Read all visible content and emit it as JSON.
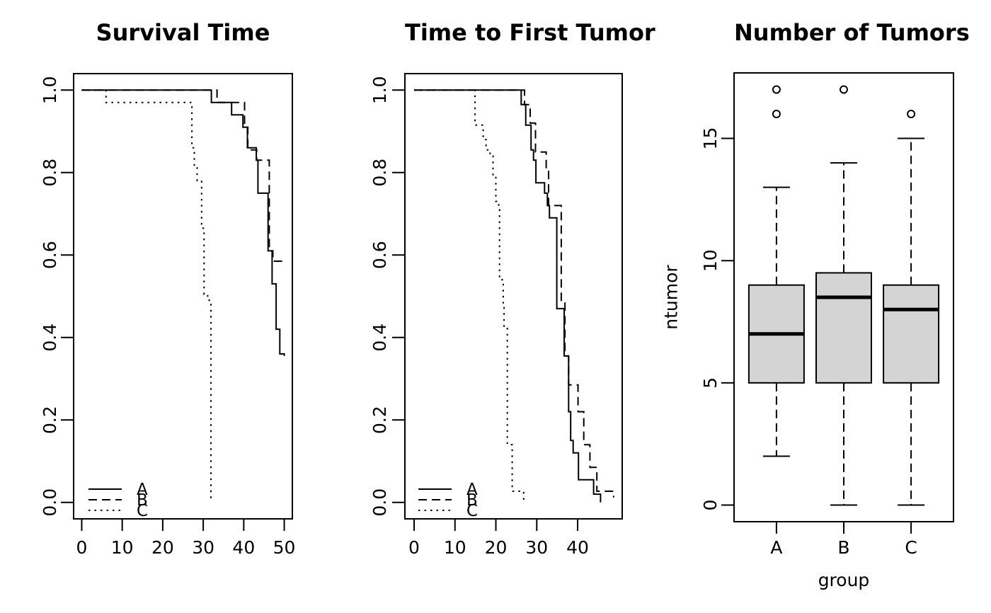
{
  "canvas": {
    "background": "#ffffff",
    "foreground": "#000000"
  },
  "chart_data": [
    {
      "type": "line",
      "subtype": "kaplan-meier-step",
      "title": "Survival Time",
      "xlabel": "",
      "ylabel": "",
      "xlim": [
        -2,
        52
      ],
      "ylim": [
        -0.04,
        1.04
      ],
      "grid": false,
      "xticks": [
        {
          "v": 0,
          "label": "0"
        },
        {
          "v": 10,
          "label": "10"
        },
        {
          "v": 20,
          "label": "20"
        },
        {
          "v": 30,
          "label": "30"
        },
        {
          "v": 40,
          "label": "40"
        },
        {
          "v": 50,
          "label": "50"
        }
      ],
      "yticks": [
        {
          "v": 0.0,
          "label": "0.0"
        },
        {
          "v": 0.2,
          "label": "0.2"
        },
        {
          "v": 0.4,
          "label": "0.4"
        },
        {
          "v": 0.6,
          "label": "0.6"
        },
        {
          "v": 0.8,
          "label": "0.8"
        },
        {
          "v": 1.0,
          "label": "1.0"
        }
      ],
      "legend": {
        "position": "bottomleft",
        "entries": [
          {
            "label": "A",
            "linestyle": "solid"
          },
          {
            "label": "B",
            "linestyle": "dashed"
          },
          {
            "label": "C",
            "linestyle": "dotted"
          }
        ]
      },
      "series": [
        {
          "name": "A",
          "linestyle": "solid",
          "points": [
            [
              0,
              1
            ],
            [
              32,
              0.97
            ],
            [
              37,
              0.94
            ],
            [
              39.8,
              0.91
            ],
            [
              40.9,
              0.86
            ],
            [
              43.1,
              0.83
            ],
            [
              43.5,
              0.75
            ],
            [
              46,
              0.61
            ],
            [
              47,
              0.53
            ],
            [
              48,
              0.42
            ],
            [
              48.9,
              0.36
            ],
            [
              50,
              0.355
            ]
          ]
        },
        {
          "name": "B",
          "linestyle": "dashed",
          "points": [
            [
              0,
              1
            ],
            [
              33.4,
              0.97
            ],
            [
              40.2,
              0.91
            ],
            [
              41,
              0.855
            ],
            [
              43.2,
              0.83
            ],
            [
              46.3,
              0.61
            ],
            [
              47.2,
              0.585
            ],
            [
              50.1,
              0.585
            ]
          ]
        },
        {
          "name": "C",
          "linestyle": "dotted",
          "points": [
            [
              0,
              1
            ],
            [
              6,
              0.97
            ],
            [
              27.2,
              0.86
            ],
            [
              27.8,
              0.815
            ],
            [
              28.5,
              0.78
            ],
            [
              29.6,
              0.665
            ],
            [
              30.2,
              0.505
            ],
            [
              31.1,
              0.49
            ],
            [
              31.9,
              0
            ]
          ]
        }
      ]
    },
    {
      "type": "line",
      "subtype": "kaplan-meier-step",
      "title": "Time to First Tumor",
      "xlabel": "",
      "ylabel": "",
      "xlim": [
        -2.25,
        50.9
      ],
      "ylim": [
        -0.04,
        1.04
      ],
      "grid": false,
      "xticks": [
        {
          "v": 0,
          "label": "0"
        },
        {
          "v": 10,
          "label": "10"
        },
        {
          "v": 20,
          "label": "20"
        },
        {
          "v": 30,
          "label": "30"
        },
        {
          "v": 40,
          "label": "40"
        }
      ],
      "yticks": [
        {
          "v": 0.0,
          "label": "0.0"
        },
        {
          "v": 0.2,
          "label": "0.2"
        },
        {
          "v": 0.4,
          "label": "0.4"
        },
        {
          "v": 0.6,
          "label": "0.6"
        },
        {
          "v": 0.8,
          "label": "0.8"
        },
        {
          "v": 1.0,
          "label": "1.0"
        }
      ],
      "legend": {
        "position": "bottomleft",
        "entries": [
          {
            "label": "A",
            "linestyle": "solid"
          },
          {
            "label": "B",
            "linestyle": "dashed"
          },
          {
            "label": "C",
            "linestyle": "dotted"
          }
        ]
      },
      "series": [
        {
          "name": "A",
          "linestyle": "solid",
          "points": [
            [
              0,
              1
            ],
            [
              26.2,
              0.965
            ],
            [
              27.3,
              0.915
            ],
            [
              28.6,
              0.855
            ],
            [
              29.2,
              0.83
            ],
            [
              29.8,
              0.775
            ],
            [
              31.9,
              0.75
            ],
            [
              32.6,
              0.72
            ],
            [
              33.1,
              0.69
            ],
            [
              34.9,
              0.47
            ],
            [
              36.7,
              0.355
            ],
            [
              37.8,
              0.22
            ],
            [
              38.3,
              0.15
            ],
            [
              38.9,
              0.12
            ],
            [
              40.2,
              0.055
            ],
            [
              43.9,
              0.02
            ],
            [
              45.6,
              0
            ]
          ]
        },
        {
          "name": "B",
          "linestyle": "dashed",
          "points": [
            [
              0,
              1
            ],
            [
              27,
              0.965
            ],
            [
              28.4,
              0.92
            ],
            [
              29.7,
              0.85
            ],
            [
              32.3,
              0.805
            ],
            [
              32.9,
              0.72
            ],
            [
              36,
              0.49
            ],
            [
              36.9,
              0.355
            ],
            [
              37.8,
              0.285
            ],
            [
              40.1,
              0.22
            ],
            [
              41.5,
              0.14
            ],
            [
              43,
              0.085
            ],
            [
              44.7,
              0.027
            ],
            [
              48.8,
              0.012
            ]
          ]
        },
        {
          "name": "C",
          "linestyle": "dotted",
          "points": [
            [
              0,
              1
            ],
            [
              14.9,
              0.915
            ],
            [
              16.9,
              0.88
            ],
            [
              17.6,
              0.855
            ],
            [
              18.6,
              0.84
            ],
            [
              19.3,
              0.79
            ],
            [
              20,
              0.73
            ],
            [
              20.7,
              0.71
            ],
            [
              20.9,
              0.54
            ],
            [
              21.8,
              0.48
            ],
            [
              22,
              0.425
            ],
            [
              22.8,
              0.14
            ],
            [
              24,
              0.027
            ],
            [
              26.8,
              0
            ]
          ]
        }
      ]
    },
    {
      "type": "boxplot",
      "title": "Number of Tumors",
      "xlabel": "group",
      "ylabel": "ntumor",
      "xlim": [
        0.37,
        3.63
      ],
      "ylim": [
        -0.68,
        17.68
      ],
      "grid": false,
      "categories": [
        "A",
        "B",
        "C"
      ],
      "yticks": [
        {
          "v": 0,
          "label": "0"
        },
        {
          "v": 5,
          "label": "5"
        },
        {
          "v": 10,
          "label": "10"
        },
        {
          "v": 15,
          "label": "15"
        }
      ],
      "box_fill": "#d4d4d4",
      "boxes": [
        {
          "group": "A",
          "whisker_low": 2,
          "q1": 5,
          "median": 7,
          "q3": 9,
          "whisker_high": 13,
          "outliers": [
            16,
            17
          ]
        },
        {
          "group": "B",
          "whisker_low": 0,
          "q1": 5,
          "median": 8.5,
          "q3": 9.5,
          "whisker_high": 14,
          "outliers": [
            17
          ]
        },
        {
          "group": "C",
          "whisker_low": 0,
          "q1": 5,
          "median": 8,
          "q3": 9,
          "whisker_high": 15,
          "outliers": [
            16
          ]
        }
      ]
    }
  ]
}
